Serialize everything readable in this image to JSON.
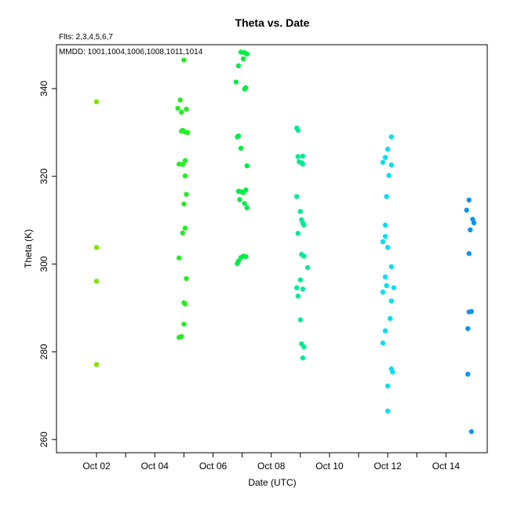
{
  "chart_data": {
    "type": "scatter",
    "title": "Theta  vs. Date",
    "subtitle_lines": [
      "Flts: 2,3,4,5,6,7",
      "MMDD: 1001,1004,1006,1008,1011,1014"
    ],
    "xlabel": "Date (UTC)",
    "ylabel": "Theta (K)",
    "xlim": [
      "2018-09-30T15:00",
      "2018-10-15T10:00"
    ],
    "ylim": [
      257,
      350
    ],
    "x_ticks": [
      "Oct 02",
      "Oct 04",
      "Oct 06",
      "Oct 08",
      "Oct 10",
      "Oct 12",
      "Oct 14"
    ],
    "y_ticks": [
      260,
      280,
      300,
      320,
      340
    ],
    "grid": false,
    "series": [
      {
        "color": "#7fe300",
        "points": [
          [
            "2018-10-02T00:00",
            337.0
          ],
          [
            "2018-10-02T00:00",
            303.8
          ],
          [
            "2018-10-02T00:00",
            296.1
          ],
          [
            "2018-10-02T00:00",
            277.1
          ]
        ]
      },
      {
        "color": "#22ee22",
        "points": [
          [
            "2018-10-05T00:00",
            346.5
          ],
          [
            "2018-10-04T21:00",
            337.4
          ],
          [
            "2018-10-04T19:00",
            335.5
          ],
          [
            "2018-10-04T22:00",
            334.6
          ],
          [
            "2018-10-05T02:00",
            335.3
          ],
          [
            "2018-10-04T23:00",
            330.5
          ],
          [
            "2018-10-05T01:00",
            330.1
          ],
          [
            "2018-10-05T03:00",
            330.0
          ],
          [
            "2018-10-04T22:00",
            330.3
          ],
          [
            "2018-10-05T01:00",
            323.6
          ],
          [
            "2018-10-04T20:00",
            322.8
          ],
          [
            "2018-10-04T23:00",
            322.7
          ],
          [
            "2018-10-05T01:00",
            320.1
          ],
          [
            "2018-10-05T02:00",
            315.9
          ],
          [
            "2018-10-05T00:00",
            313.7
          ],
          [
            "2018-10-05T01:00",
            308.2
          ],
          [
            "2018-10-04T23:00",
            307.1
          ],
          [
            "2018-10-04T20:00",
            301.4
          ],
          [
            "2018-10-05T02:00",
            296.7
          ],
          [
            "2018-10-05T00:00",
            291.2
          ],
          [
            "2018-10-05T01:00",
            290.9
          ],
          [
            "2018-10-05T00:00",
            286.3
          ],
          [
            "2018-10-04T22:00",
            283.5
          ],
          [
            "2018-10-04T20:00",
            283.3
          ]
        ]
      },
      {
        "color": "#00ee44",
        "points": [
          [
            "2018-10-06T23:00",
            348.3
          ],
          [
            "2018-10-07T02:00",
            348.2
          ],
          [
            "2018-10-07T04:00",
            347.9
          ],
          [
            "2018-10-07T01:00",
            346.8
          ],
          [
            "2018-10-06T21:00",
            345.2
          ],
          [
            "2018-10-06T19:00",
            341.5
          ],
          [
            "2018-10-07T03:00",
            340.2
          ],
          [
            "2018-10-07T02:00",
            339.9
          ],
          [
            "2018-10-06T21:00",
            329.2
          ],
          [
            "2018-10-06T20:00",
            329.0
          ],
          [
            "2018-10-06T23:00",
            326.4
          ],
          [
            "2018-10-07T04:00",
            322.4
          ],
          [
            "2018-10-07T03:00",
            316.9
          ],
          [
            "2018-10-06T21:00",
            316.6
          ],
          [
            "2018-10-06T23:00",
            316.5
          ],
          [
            "2018-10-07T01:00",
            316.3
          ],
          [
            "2018-10-06T22:00",
            314.7
          ],
          [
            "2018-10-07T02:00",
            313.8
          ],
          [
            "2018-10-07T04:00",
            312.8
          ],
          [
            "2018-10-07T01:00",
            301.8
          ],
          [
            "2018-10-07T03:00",
            301.7
          ],
          [
            "2018-10-06T23:00",
            301.5
          ],
          [
            "2018-10-06T21:00",
            300.7
          ],
          [
            "2018-10-06T20:00",
            300.1
          ]
        ]
      },
      {
        "color": "#00ec90",
        "points": [
          [
            "2018-10-08T21:00",
            331.0
          ],
          [
            "2018-10-08T22:00",
            330.5
          ],
          [
            "2018-10-08T22:00",
            324.5
          ],
          [
            "2018-10-09T02:00",
            324.6
          ],
          [
            "2018-10-08T23:00",
            323.3
          ],
          [
            "2018-10-09T01:00",
            323.1
          ],
          [
            "2018-10-09T02:00",
            322.8
          ],
          [
            "2018-10-08T21:00",
            315.4
          ],
          [
            "2018-10-09T00:00",
            312.0
          ],
          [
            "2018-10-09T01:00",
            310.1
          ],
          [
            "2018-10-09T02:00",
            309.3
          ],
          [
            "2018-10-09T03:00",
            308.9
          ],
          [
            "2018-10-08T22:00",
            307.0
          ],
          [
            "2018-10-09T01:00",
            302.2
          ],
          [
            "2018-10-09T03:00",
            301.8
          ],
          [
            "2018-10-09T06:00",
            299.2
          ],
          [
            "2018-10-09T00:00",
            296.4
          ],
          [
            "2018-10-08T21:00",
            294.6
          ],
          [
            "2018-10-09T02:00",
            294.3
          ],
          [
            "2018-10-08T22:00",
            292.7
          ],
          [
            "2018-10-09T00:00",
            287.3
          ],
          [
            "2018-10-09T01:00",
            281.8
          ],
          [
            "2018-10-09T03:00",
            281.1
          ],
          [
            "2018-10-09T02:00",
            278.6
          ]
        ]
      },
      {
        "color": "#00e0f0",
        "points": [
          [
            "2018-10-12T03:00",
            329.0
          ],
          [
            "2018-10-12T00:00",
            326.2
          ],
          [
            "2018-10-11T22:00",
            324.3
          ],
          [
            "2018-10-11T20:00",
            323.2
          ],
          [
            "2018-10-12T03:00",
            322.6
          ],
          [
            "2018-10-12T01:00",
            320.2
          ],
          [
            "2018-10-11T23:00",
            315.4
          ],
          [
            "2018-10-11T22:00",
            308.9
          ],
          [
            "2018-10-11T22:00",
            306.3
          ],
          [
            "2018-10-11T20:00",
            305.1
          ],
          [
            "2018-10-12T00:00",
            303.8
          ],
          [
            "2018-10-12T03:00",
            299.4
          ],
          [
            "2018-10-11T22:00",
            297.1
          ],
          [
            "2018-10-11T23:00",
            295.1
          ],
          [
            "2018-10-12T05:00",
            294.6
          ],
          [
            "2018-10-11T20:00",
            293.6
          ],
          [
            "2018-10-12T03:00",
            291.6
          ],
          [
            "2018-10-12T02:00",
            287.6
          ],
          [
            "2018-10-11T22:00",
            284.8
          ],
          [
            "2018-10-11T20:00",
            282.0
          ],
          [
            "2018-10-12T03:00",
            276.1
          ],
          [
            "2018-10-12T04:00",
            275.4
          ],
          [
            "2018-10-12T00:00",
            272.2
          ],
          [
            "2018-10-12T00:00",
            266.5
          ]
        ]
      },
      {
        "color": "#0a96f0",
        "points": [
          [
            "2018-10-14T19:00",
            314.6
          ],
          [
            "2018-10-14T17:00",
            312.3
          ],
          [
            "2018-10-14T22:00",
            310.2
          ],
          [
            "2018-10-14T23:00",
            309.4
          ],
          [
            "2018-10-14T20:00",
            307.8
          ],
          [
            "2018-10-14T19:00",
            302.4
          ],
          [
            "2018-10-14T19:00",
            289.1
          ],
          [
            "2018-10-14T21:00",
            289.2
          ],
          [
            "2018-10-14T18:00",
            285.3
          ],
          [
            "2018-10-14T18:00",
            274.9
          ],
          [
            "2018-10-14T21:00",
            261.8
          ]
        ]
      }
    ]
  }
}
